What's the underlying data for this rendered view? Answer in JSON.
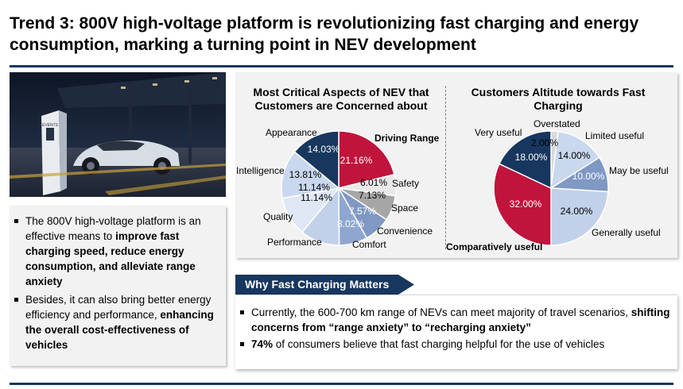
{
  "title": "Trend 3: 800V high-voltage platform is revolutionizing fast charging and energy consumption, marking a turning point in NEV development",
  "photo_brand_text": "EVENTS",
  "left_bullets": [
    [
      {
        "t": "The 800V high-voltage platform  is an effective means to ",
        "b": false
      },
      {
        "t": "improve fast charging speed, reduce energy consumption, and alleviate range anxiety",
        "b": true
      }
    ],
    [
      {
        "t": "Besides, it can also bring better energy efficiency and performance, ",
        "b": false
      },
      {
        "t": "enhancing the overall cost-effectiveness of vehicles",
        "b": true
      }
    ]
  ],
  "why": {
    "heading": "Why Fast Charging Matters",
    "bullets": [
      [
        {
          "t": "Currently, the 600-700 km range of NEVs can meet majority of travel scenarios, ",
          "b": false
        },
        {
          "t": "shifting concerns from “range anxiety” to “recharging anxiety”",
          "b": true
        }
      ],
      [
        {
          "t": "74%",
          "b": true
        },
        {
          "t": " of consumers believe that fast charging helpful for the use of vehicles",
          "b": false
        }
      ]
    ]
  },
  "chart_data": [
    {
      "type": "pie",
      "title": "Most Critical Aspects of NEV that Customers are Concerned about",
      "slices": [
        {
          "label": "Driving Range",
          "value": 21.16,
          "text": "21.16%",
          "color": "#c0143c",
          "label_bold": true
        },
        {
          "label": "Safety",
          "value": 6.01,
          "text": "6.01%",
          "color": "#e8e8e8"
        },
        {
          "label": "Space",
          "value": 7.13,
          "text": "7.13%",
          "color": "#a6a6a6"
        },
        {
          "label": "Convenience",
          "value": 7.57,
          "text": "7.57%",
          "color": "#7f98c4"
        },
        {
          "label": "Comfort",
          "value": 8.02,
          "text": "8.02%",
          "color": "#8fa7d0"
        },
        {
          "label": "Performance",
          "value": 11.14,
          "text": "11.14%",
          "color": "#c2d1ea"
        },
        {
          "label": "Quality",
          "value": 11.14,
          "text": "11.14%",
          "color": "#dfe7f4"
        },
        {
          "label": "Intelligence",
          "value": 13.81,
          "text": "13.81%",
          "color": "#c9d7ef"
        },
        {
          "label": "Appearance",
          "value": 14.03,
          "text": "14.03%",
          "color": "#17375e"
        }
      ]
    },
    {
      "type": "pie",
      "title": "Customers Altitude towards Fast Charging",
      "slices": [
        {
          "label": "Overstated",
          "value": 2.0,
          "text": "2.00%",
          "color": "#d9d9d9"
        },
        {
          "label": "Limited useful",
          "value": 14.0,
          "text": "14.00%",
          "color": "#c9d7ef"
        },
        {
          "label": "May be useful",
          "value": 10.0,
          "text": "10.00%",
          "color": "#7f98c4"
        },
        {
          "label": "Generally useful",
          "value": 24.0,
          "text": "24.00%",
          "color": "#c2d1ea"
        },
        {
          "label": "Comparatively useful",
          "value": 32.0,
          "text": "32.00%",
          "color": "#c0143c",
          "label_bold": true
        },
        {
          "label": "Very useful",
          "value": 18.0,
          "text": "18.00%",
          "color": "#17375e"
        }
      ]
    }
  ]
}
